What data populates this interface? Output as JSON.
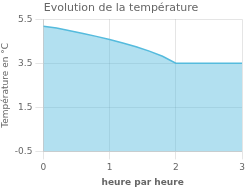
{
  "chart_data": {
    "type": "area",
    "title": "Evolution de la température",
    "x_label": "heure par heure",
    "y_label": "Température en °C",
    "x": [
      0,
      0.2,
      0.4,
      0.6,
      0.8,
      1.0,
      1.2,
      1.4,
      1.6,
      1.8,
      2.0,
      2.25,
      2.5,
      2.75,
      3.0
    ],
    "values": [
      5.18,
      5.1,
      4.98,
      4.85,
      4.72,
      4.58,
      4.42,
      4.25,
      4.05,
      3.82,
      3.5,
      3.5,
      3.5,
      3.5,
      3.5
    ],
    "color": "#55bbdd",
    "xlim": [
      0,
      3
    ],
    "ylim": [
      -0.5,
      5.5
    ],
    "xticks": [
      0,
      1,
      2,
      3
    ],
    "yticks": [
      -0.5,
      1.5,
      3.5,
      5.5
    ],
    "grid": true
  }
}
